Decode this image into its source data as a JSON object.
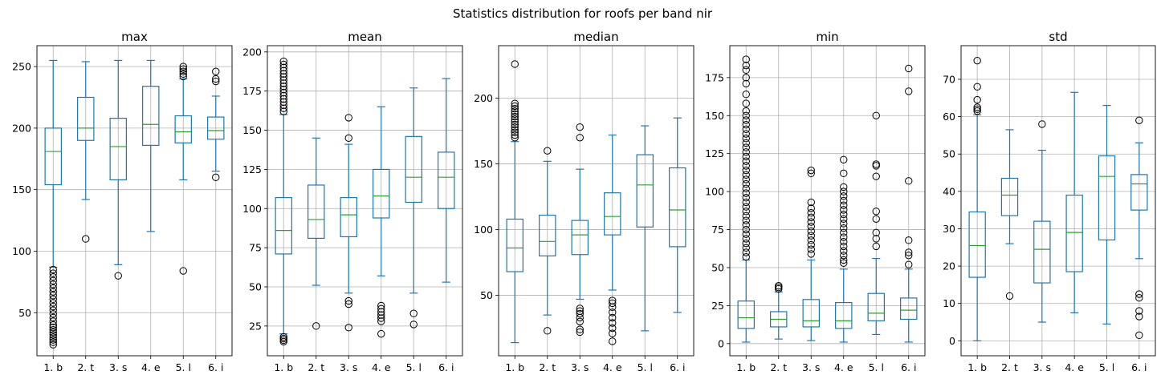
{
  "title": "Statistics distribution for roofs per band nir",
  "colors": {
    "box": "#1f77b4",
    "median": "#2ca02c",
    "grid": "#b0b0b0",
    "flier": "#000000"
  },
  "chart_data": [
    {
      "type": "box",
      "title": "max",
      "categories": [
        "1. b",
        "2. t",
        "3. s",
        "4. e",
        "5. l",
        "6. i"
      ],
      "ylim": [
        15,
        267
      ],
      "yticks": [
        50,
        100,
        150,
        200,
        250
      ],
      "grid": true,
      "boxes": [
        {
          "whislo": 87,
          "q1": 154,
          "med": 181,
          "q3": 200,
          "whishi": 255,
          "fliers": [
            24,
            26,
            28,
            30,
            32,
            34,
            36,
            38,
            40,
            43,
            46,
            49,
            52,
            55,
            58,
            61,
            64,
            67,
            70,
            73,
            76,
            79,
            82,
            85
          ]
        },
        {
          "whislo": 142,
          "q1": 190,
          "med": 200,
          "q3": 225,
          "whishi": 254,
          "fliers": [
            110
          ]
        },
        {
          "whislo": 89,
          "q1": 158,
          "med": 185,
          "q3": 208,
          "whishi": 255,
          "fliers": [
            80
          ]
        },
        {
          "whislo": 116,
          "q1": 186,
          "med": 203,
          "q3": 234,
          "whishi": 255,
          "fliers": []
        },
        {
          "whislo": 158,
          "q1": 188,
          "med": 197,
          "q3": 210,
          "whishi": 240,
          "fliers": [
            84,
            242,
            244,
            246,
            248,
            250
          ]
        },
        {
          "whislo": 165,
          "q1": 191,
          "med": 198,
          "q3": 209,
          "whishi": 226,
          "fliers": [
            160,
            238,
            240,
            246
          ]
        }
      ]
    },
    {
      "type": "box",
      "title": "mean",
      "categories": [
        "1. b",
        "2. t",
        "3. s",
        "4. e",
        "5. l",
        "6. i"
      ],
      "ylim": [
        6,
        204
      ],
      "yticks": [
        25,
        50,
        75,
        100,
        125,
        150,
        175,
        200
      ],
      "grid": true,
      "boxes": [
        {
          "whislo": 20,
          "q1": 71,
          "med": 86,
          "q3": 107,
          "whishi": 160,
          "fliers": [
            15,
            16,
            17,
            18,
            162,
            164,
            166,
            168,
            170,
            172,
            174,
            176,
            178,
            180,
            182,
            184,
            186,
            188,
            190,
            192,
            194
          ]
        },
        {
          "whislo": 51,
          "q1": 81,
          "med": 93,
          "q3": 115,
          "whishi": 145,
          "fliers": [
            25
          ]
        },
        {
          "whislo": 46,
          "q1": 82,
          "med": 96,
          "q3": 107,
          "whishi": 141,
          "fliers": [
            24,
            39,
            41,
            145,
            158
          ]
        },
        {
          "whislo": 57,
          "q1": 94,
          "med": 108,
          "q3": 125,
          "whishi": 165,
          "fliers": [
            20,
            28,
            30,
            32,
            34,
            36,
            38
          ]
        },
        {
          "whislo": 46,
          "q1": 104,
          "med": 120,
          "q3": 146,
          "whishi": 177,
          "fliers": [
            26,
            33
          ]
        },
        {
          "whislo": 53,
          "q1": 100,
          "med": 120,
          "q3": 136,
          "whishi": 183,
          "fliers": []
        }
      ]
    },
    {
      "type": "box",
      "title": "median",
      "categories": [
        "1. b",
        "2. t",
        "3. s",
        "4. e",
        "5. l",
        "6. i"
      ],
      "ylim": [
        4,
        240
      ],
      "yticks": [
        50,
        100,
        150,
        200
      ],
      "grid": true,
      "boxes": [
        {
          "whislo": 14,
          "q1": 68,
          "med": 86,
          "q3": 108,
          "whishi": 167,
          "fliers": [
            170,
            172,
            174,
            176,
            178,
            180,
            182,
            184,
            186,
            188,
            190,
            192,
            194,
            196,
            226
          ]
        },
        {
          "whislo": 35,
          "q1": 80,
          "med": 91,
          "q3": 111,
          "whishi": 152,
          "fliers": [
            23,
            160
          ]
        },
        {
          "whislo": 47,
          "q1": 81,
          "med": 96,
          "q3": 107,
          "whishi": 146,
          "fliers": [
            22,
            24,
            30,
            33,
            36,
            38,
            40,
            170,
            178
          ]
        },
        {
          "whislo": 54,
          "q1": 96,
          "med": 110,
          "q3": 128,
          "whishi": 172,
          "fliers": [
            15,
            21,
            25,
            29,
            33,
            37,
            41,
            44,
            46
          ]
        },
        {
          "whislo": 23,
          "q1": 102,
          "med": 134,
          "q3": 157,
          "whishi": 179,
          "fliers": []
        },
        {
          "whislo": 37,
          "q1": 87,
          "med": 115,
          "q3": 147,
          "whishi": 185,
          "fliers": []
        }
      ]
    },
    {
      "type": "box",
      "title": "min",
      "categories": [
        "1. b",
        "2. t",
        "3. s",
        "4. e",
        "5. l",
        "6. i"
      ],
      "ylim": [
        -8,
        196
      ],
      "yticks": [
        0,
        25,
        50,
        75,
        100,
        125,
        150,
        175
      ],
      "grid": true,
      "boxes": [
        {
          "whislo": 1,
          "q1": 10,
          "med": 17,
          "q3": 28,
          "whishi": 55,
          "fliers": [
            57,
            60,
            63,
            66,
            69,
            72,
            75,
            78,
            81,
            84,
            87,
            90,
            93,
            96,
            99,
            102,
            105,
            108,
            111,
            114,
            117,
            120,
            123,
            126,
            129,
            132,
            135,
            138,
            141,
            144,
            147,
            150,
            153,
            158,
            164,
            171,
            175,
            180,
            183,
            187
          ]
        },
        {
          "whislo": 3,
          "q1": 11,
          "med": 16,
          "q3": 21,
          "whishi": 34,
          "fliers": [
            36,
            37,
            38
          ]
        },
        {
          "whislo": 2,
          "q1": 11,
          "med": 15,
          "q3": 29,
          "whishi": 55,
          "fliers": [
            59,
            62,
            65,
            68,
            71,
            74,
            77,
            80,
            83,
            86,
            89,
            93,
            112,
            114
          ]
        },
        {
          "whislo": 1,
          "q1": 10,
          "med": 15,
          "q3": 27,
          "whishi": 49,
          "fliers": [
            53,
            55,
            58,
            61,
            64,
            67,
            70,
            73,
            76,
            79,
            82,
            85,
            88,
            91,
            94,
            97,
            100,
            103,
            112,
            121
          ]
        },
        {
          "whislo": 6,
          "q1": 15,
          "med": 20,
          "q3": 33,
          "whishi": 56,
          "fliers": [
            64,
            69,
            73,
            82,
            87,
            110,
            117,
            118,
            150
          ]
        },
        {
          "whislo": 1,
          "q1": 16,
          "med": 22,
          "q3": 30,
          "whishi": 49,
          "fliers": [
            52,
            58,
            60,
            68,
            107,
            166,
            181
          ]
        }
      ]
    },
    {
      "type": "box",
      "title": "std",
      "categories": [
        "1. b",
        "2. t",
        "3. s",
        "4. e",
        "5. l",
        "6. i"
      ],
      "ylim": [
        -4,
        79
      ],
      "yticks": [
        0,
        10,
        20,
        30,
        40,
        50,
        60,
        70
      ],
      "grid": true,
      "boxes": [
        {
          "whislo": 0,
          "q1": 17,
          "med": 25.5,
          "q3": 34.5,
          "whishi": 60.5,
          "fliers": [
            61.5,
            62,
            62.5,
            64.5,
            68,
            75
          ]
        },
        {
          "whislo": 26,
          "q1": 33.5,
          "med": 39,
          "q3": 43.5,
          "whishi": 56.5,
          "fliers": [
            12
          ]
        },
        {
          "whislo": 5,
          "q1": 15.5,
          "med": 24.5,
          "q3": 32,
          "whishi": 51,
          "fliers": [
            58
          ]
        },
        {
          "whislo": 7.5,
          "q1": 18.5,
          "med": 29,
          "q3": 39,
          "whishi": 66.5,
          "fliers": []
        },
        {
          "whislo": 4.5,
          "q1": 27,
          "med": 44,
          "q3": 49.5,
          "whishi": 63,
          "fliers": []
        },
        {
          "whislo": 22,
          "q1": 35,
          "med": 42,
          "q3": 44.5,
          "whishi": 53,
          "fliers": [
            1.5,
            6.5,
            8,
            11.5,
            12.5,
            59
          ]
        }
      ]
    }
  ]
}
